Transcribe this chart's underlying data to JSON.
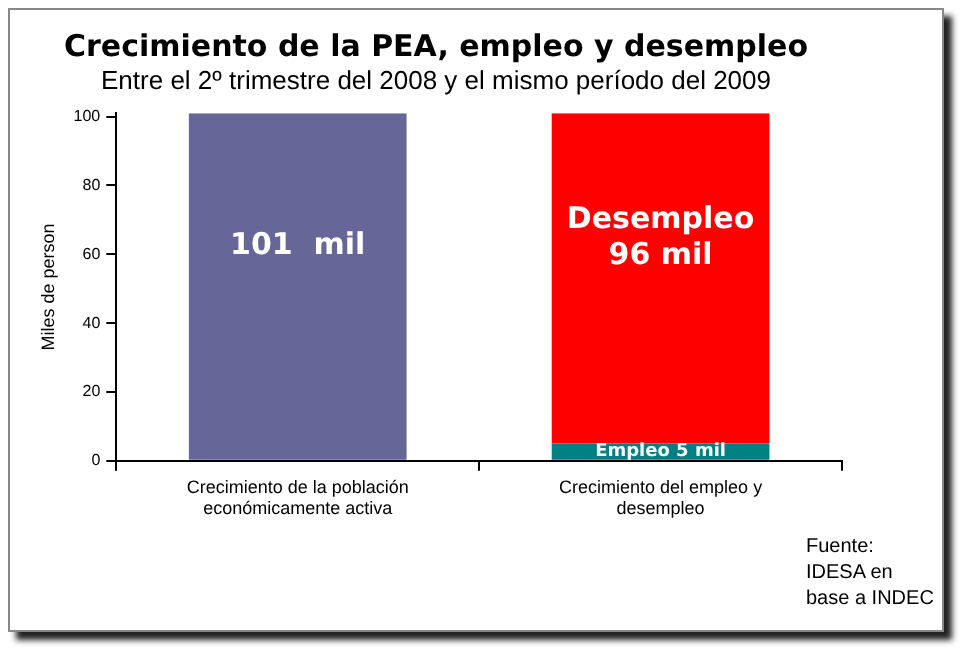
{
  "chart_data": {
    "type": "bar",
    "title": "Crecimiento de la PEA, empleo y desempleo",
    "subtitle": "Entre el 2º trimestre del 2008 y el mismo período del 2009",
    "ylabel": "Miles de person",
    "categories": [
      "Crecimiento de la población económicamente activa",
      "Crecimiento del empleo y desempleo"
    ],
    "stacked": true,
    "series": [
      {
        "color": "#666699",
        "values": [
          101,
          null
        ],
        "value_labels": [
          "101  mil",
          null
        ]
      },
      {
        "color": "#008080",
        "values": [
          null,
          5
        ],
        "value_labels": [
          null,
          "Empleo 5 mil"
        ]
      },
      {
        "color": "#ff0000",
        "values": [
          null,
          96
        ],
        "value_labels": [
          null,
          "Desempleo\n96 mil"
        ]
      }
    ],
    "ylim": [
      0,
      101
    ],
    "yticks": [
      0,
      20,
      40,
      60,
      80,
      100
    ],
    "grid": false,
    "legend": false,
    "annotations": [
      "Fuente: IDESA en base a INDEC"
    ]
  }
}
